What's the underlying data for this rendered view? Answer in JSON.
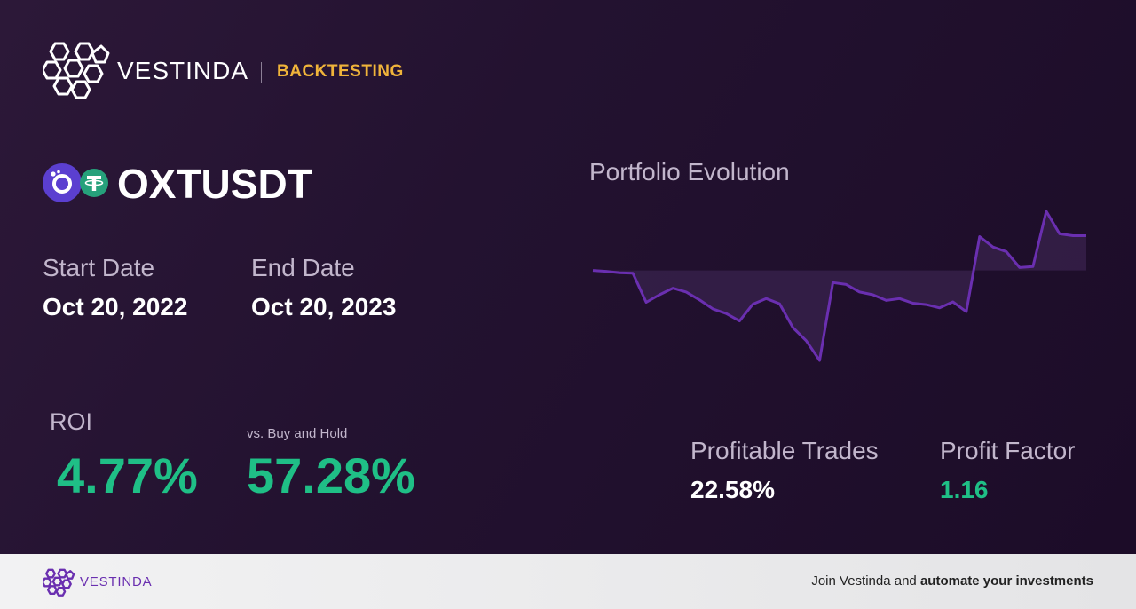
{
  "brand": {
    "name": "VESTINDA",
    "tag": "BACKTESTING",
    "logo_icon": "hexagon-cluster-logo-icon"
  },
  "pair": {
    "name": "OXTUSDT",
    "base_icon": "orchid-oxt-coin-icon",
    "quote_icon": "tether-usdt-coin-icon"
  },
  "dates": {
    "start_label": "Start Date",
    "start_value": "Oct 20, 2022",
    "end_label": "End Date",
    "end_value": "Oct 20, 2023"
  },
  "roi": {
    "label": "ROI",
    "value": "4.77%",
    "vs_label": "vs. Buy and Hold",
    "vs_value": "57.28%"
  },
  "chart_data": {
    "type": "line",
    "title": "Portfolio Evolution",
    "series": [
      {
        "values": [
          0,
          -0.2,
          -0.5,
          -0.6,
          -6.8,
          -5.2,
          -3.8,
          -4.6,
          -6.3,
          -8.2,
          -9.2,
          -10.8,
          -7.2,
          -6.0,
          -7.1,
          -12.2,
          -15.0,
          -19.2,
          -2.6,
          -3.0,
          -4.6,
          -5.2,
          -6.4,
          -6.0,
          -7.0,
          -7.3,
          -8.0,
          -6.7,
          -8.8,
          7.2,
          5.0,
          4.0,
          0.6,
          0.8,
          12.6,
          7.8,
          7.4,
          7.4
        ]
      }
    ],
    "baseline": 0,
    "grid": false,
    "legend": "none",
    "colors": {
      "line": "#6a2fb0",
      "fill": "#3a2350"
    }
  },
  "stats": {
    "profitable_label": "Profitable Trades",
    "profitable_value": "22.58%",
    "factor_label": "Profit Factor",
    "factor_value": "1.16"
  },
  "footer": {
    "brand_name": "VESTINDA",
    "cta_plain": "Join Vestinda and ",
    "cta_bold": "automate your investments"
  },
  "colors": {
    "accent_green": "#1fbf86",
    "accent_gold": "#f0b43a",
    "brand_purple": "#6a2fb0"
  }
}
